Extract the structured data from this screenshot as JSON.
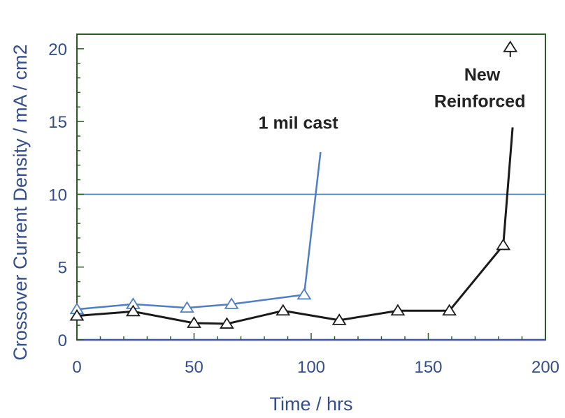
{
  "chart_data": {
    "type": "line",
    "title": "",
    "xlabel": "Time / hrs",
    "ylabel": "Crossover Current Density / mA / cm2",
    "xlim": [
      0,
      200
    ],
    "ylim": [
      0,
      21
    ],
    "xticks": [
      0,
      50,
      100,
      150,
      200
    ],
    "yticks": [
      0,
      5,
      10,
      15,
      20
    ],
    "reference_line": {
      "y": 10,
      "color": "#4a7fc0"
    },
    "grid": false,
    "series": [
      {
        "name": "1 mil cast",
        "color": "#4f7ec4",
        "x": [
          0,
          24,
          47,
          66,
          97,
          104
        ],
        "y": [
          2.1,
          2.45,
          2.2,
          2.45,
          3.1,
          12.9
        ],
        "markers": [
          true,
          true,
          true,
          true,
          true,
          false
        ]
      },
      {
        "name": "New Reinforced",
        "color": "#1a1a1a",
        "x": [
          0,
          24,
          50,
          64,
          88,
          112,
          137,
          159,
          182,
          186
        ],
        "y": [
          1.65,
          1.95,
          1.15,
          1.1,
          2.0,
          1.35,
          2.0,
          2.0,
          6.5,
          14.6
        ],
        "markers": [
          true,
          true,
          true,
          true,
          true,
          true,
          true,
          true,
          true,
          false
        ]
      }
    ],
    "annotations": [
      {
        "text": "1 mil cast",
        "x": 94.5,
        "y": 14.5
      },
      {
        "text": "New",
        "x": 173,
        "y": 17.8
      },
      {
        "text": "Reinforced",
        "x": 172,
        "y": 16.0
      }
    ],
    "outlier_marker": {
      "x": 185,
      "y": 20.1
    }
  }
}
